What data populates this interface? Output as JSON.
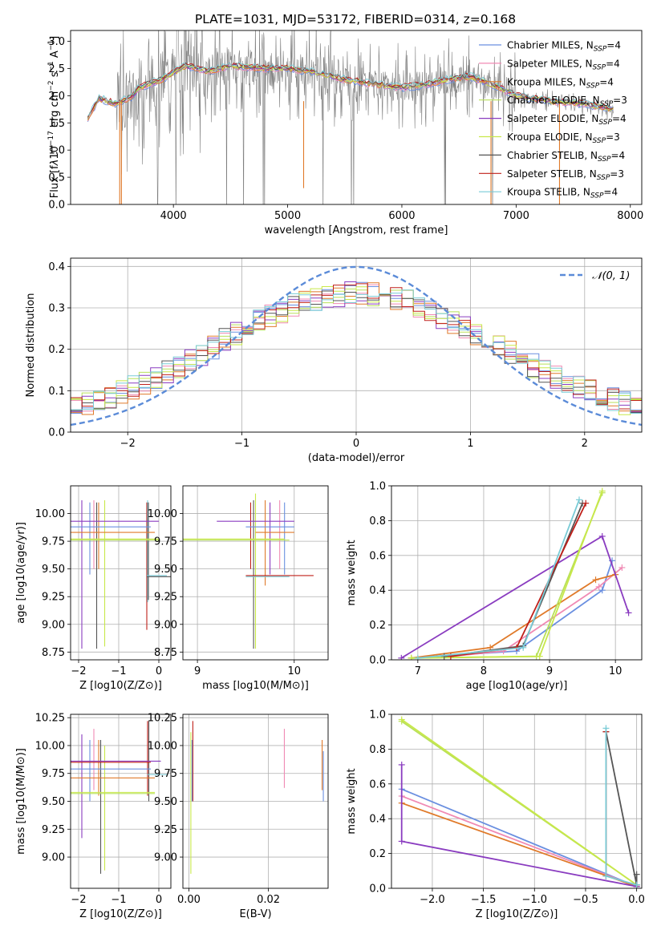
{
  "colors": {
    "chabrier_miles": "#6a8fe0",
    "salpeter_miles": "#f08ab4",
    "kroupa_miles": "#e07a2a",
    "chabrier_elodie": "#b8e05a",
    "salpeter_elodie": "#8a3cc0",
    "kroupa_elodie": "#c8e84a",
    "chabrier_stelib": "#555555",
    "salpeter_stelib": "#c0201a",
    "kroupa_stelib": "#79cbd6",
    "obs": "#808080",
    "gauss": "#5b8bd8"
  },
  "chart_data": [
    {
      "id": "spectrum",
      "type": "line",
      "title": "PLATE=1031, MJD=53172, FIBERID=0314, z=0.168",
      "xlabel": "wavelength [Angstrom, rest frame]",
      "ylabel": "Flux [f_λ 10^-17 erg cm^-2 s^-1 A^-1]",
      "xlim": [
        3100,
        8100
      ],
      "ylim": [
        0,
        3.2
      ],
      "xticks": [
        "4000",
        "5000",
        "6000",
        "7000",
        "8000"
      ],
      "yticks": [
        "0.0",
        "0.5",
        "1.0",
        "1.5",
        "2.0",
        "2.5",
        "3.0"
      ],
      "legend_position": "upper right",
      "series": [
        {
          "name": "Chabrier MILES, N_SSP=4",
          "key": "chabrier_miles"
        },
        {
          "name": "Salpeter MILES, N_SSP=4",
          "key": "salpeter_miles"
        },
        {
          "name": "Kroupa MILES, N_SSP=4",
          "key": "kroupa_miles"
        },
        {
          "name": "Chabrier ELODIE, N_SSP=3",
          "key": "chabrier_elodie"
        },
        {
          "name": "Salpeter ELODIE, N_SSP=4",
          "key": "salpeter_elodie"
        },
        {
          "name": "Kroupa ELODIE, N_SSP=3",
          "key": "kroupa_elodie"
        },
        {
          "name": "Chabrier STELIB, N_SSP=4",
          "key": "chabrier_stelib"
        },
        {
          "name": "Salpeter STELIB, N_SSP=3",
          "key": "salpeter_stelib"
        },
        {
          "name": "Kroupa STELIB, N_SSP=4",
          "key": "kroupa_stelib"
        }
      ],
      "continuum": [
        [
          3250,
          1.6
        ],
        [
          3350,
          1.95
        ],
        [
          3500,
          1.85
        ],
        [
          3650,
          2.0
        ],
        [
          3700,
          2.15
        ],
        [
          3900,
          2.3
        ],
        [
          4100,
          2.55
        ],
        [
          4300,
          2.45
        ],
        [
          4500,
          2.55
        ],
        [
          4800,
          2.5
        ],
        [
          5000,
          2.5
        ],
        [
          5200,
          2.45
        ],
        [
          5500,
          2.3
        ],
        [
          5800,
          2.2
        ],
        [
          6000,
          2.15
        ],
        [
          6200,
          2.2
        ],
        [
          6400,
          2.3
        ],
        [
          6600,
          2.35
        ],
        [
          6800,
          2.2
        ],
        [
          7000,
          2.0
        ],
        [
          7300,
          1.9
        ],
        [
          7600,
          1.85
        ],
        [
          7850,
          1.75
        ]
      ]
    },
    {
      "id": "residuals",
      "type": "histogram",
      "xlabel": "(data-model)/error",
      "ylabel": "Normed distribution",
      "xlim": [
        -2.5,
        2.5
      ],
      "ylim": [
        0,
        0.42
      ],
      "xticks": [
        "−2",
        "−1",
        "0",
        "1",
        "2"
      ],
      "yticks": [
        "0.0",
        "0.1",
        "0.2",
        "0.3",
        "0.4"
      ],
      "legend": "𝒩(0, 1)",
      "legend_position": "upper right",
      "bin_width": 0.1
    },
    {
      "id": "age_vs_Z",
      "type": "errorbar",
      "xlabel": "Z [log10(Z/Z⊙)]",
      "ylabel": "age  [log10(age/yr)]",
      "xlim": [
        -2.2,
        0.3
      ],
      "ylim": [
        8.68,
        10.25
      ],
      "xticks": [
        "−2",
        "−1",
        "0"
      ],
      "yticks": [
        "8.75",
        "9.00",
        "9.25",
        "9.50",
        "9.75",
        "10.00"
      ]
    },
    {
      "id": "age_vs_mass",
      "type": "errorbar",
      "xlabel": "mass [log10(M/M⊙)]",
      "xlim": [
        8.85,
        10.35
      ],
      "ylim": [
        8.68,
        10.25
      ],
      "xticks": [
        "9",
        "10"
      ],
      "yticks": [
        "8.75",
        "9.00",
        "9.25",
        "9.50",
        "9.75",
        "10.00"
      ]
    },
    {
      "id": "weight_vs_age",
      "type": "line",
      "xlabel": "age  [log10(age/yr)]",
      "ylabel": "mass weight",
      "xlim": [
        6.6,
        10.4
      ],
      "ylim": [
        0,
        1.0
      ],
      "xticks": [
        "7",
        "8",
        "9",
        "10"
      ],
      "yticks": [
        "0.0",
        "0.2",
        "0.4",
        "0.6",
        "0.8",
        "1.0"
      ]
    },
    {
      "id": "mass_vs_Z",
      "type": "errorbar",
      "xlabel": "Z [log10(Z/Z⊙)]",
      "ylabel": "mass [log10(M/M⊙)]",
      "xlim": [
        -2.2,
        0.3
      ],
      "ylim": [
        8.72,
        10.28
      ],
      "xticks": [
        "−2",
        "−1",
        "0"
      ],
      "yticks": [
        "9.00",
        "9.25",
        "9.50",
        "9.75",
        "10.00",
        "10.25"
      ]
    },
    {
      "id": "mass_vs_ebv",
      "type": "errorbar",
      "xlabel": "E(B-V)",
      "xlim": [
        -0.0015,
        0.035
      ],
      "ylim": [
        8.72,
        10.28
      ],
      "xticks": [
        "0.00",
        "0.02"
      ],
      "yticks": [
        "9.00",
        "9.25",
        "9.50",
        "9.75",
        "10.00",
        "10.25"
      ]
    },
    {
      "id": "weight_vs_Z",
      "type": "line",
      "xlabel": "Z [log10(Z/Z⊙)]",
      "ylabel": "mass weight",
      "xlim": [
        -2.4,
        0.05
      ],
      "ylim": [
        0,
        1.0
      ],
      "xticks": [
        "−2.0",
        "−1.5",
        "−1.0",
        "−0.5",
        "0.0"
      ],
      "yticks": [
        "0.0",
        "0.2",
        "0.4",
        "0.6",
        "0.8",
        "1.0"
      ]
    }
  ]
}
